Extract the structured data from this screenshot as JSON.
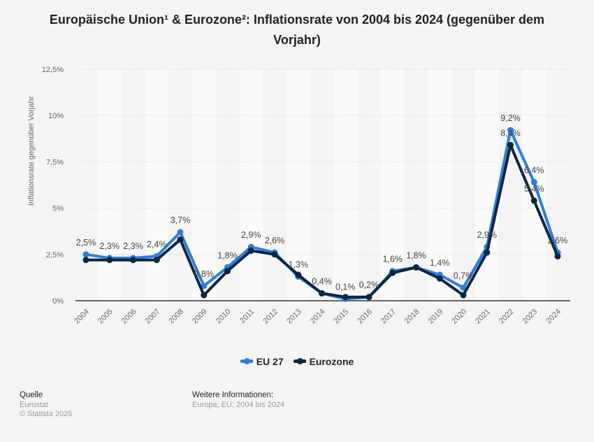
{
  "title": "Europäische Union¹ & Eurozone²: Inflationsrate von 2004 bis 2024 (gegenüber dem Vorjahr)",
  "footer": {
    "source_heading": "Quelle",
    "source": "Eurostat",
    "copyright": "© Statista 2025",
    "info_heading": "Weitere Informationen:",
    "info": "Europa; EU; 2004 bis 2024"
  },
  "colors": {
    "eu27": "#2b7ee0",
    "eurozone": "#0d2640",
    "background": "#f4f4f4"
  },
  "chart_data": {
    "type": "line",
    "title": "Europäische Union¹ & Eurozone²: Inflationsrate von 2004 bis 2024 (gegenüber dem Vorjahr)",
    "xlabel": "",
    "ylabel": "Inflationsrate gegenüber Vorjahr",
    "ylim": [
      0,
      12.5
    ],
    "yticks": [
      "0%",
      "2,5%",
      "5%",
      "7,5%",
      "10%",
      "12,5%"
    ],
    "ytick_values": [
      0,
      2.5,
      5,
      7.5,
      10,
      12.5
    ],
    "grid": true,
    "legend_position": "bottom",
    "categories": [
      "2004",
      "2005",
      "2006",
      "2007",
      "2008",
      "2009",
      "2010",
      "2011",
      "2012",
      "2013",
      "2014",
      "2015",
      "2016",
      "2017",
      "2018",
      "2019",
      "2020",
      "2021",
      "2022",
      "2023",
      "2024"
    ],
    "series": [
      {
        "name": "EU 27",
        "color": "#2b7ee0",
        "values": [
          2.5,
          2.3,
          2.3,
          2.4,
          3.7,
          0.8,
          1.8,
          2.9,
          2.6,
          1.3,
          0.4,
          0.1,
          0.2,
          1.6,
          1.8,
          1.4,
          0.7,
          2.9,
          9.2,
          6.4,
          2.6
        ],
        "labels": [
          "2,5%",
          "2,3%",
          "2,3%",
          "2,4%",
          "3,7%",
          "0,8%",
          "1,8%",
          "2,9%",
          "2,6%",
          "1,3%",
          "0,4%",
          "0,1%",
          "0,2%",
          "1,6%",
          "1,8%",
          "1,4%",
          "0,7%",
          "2,9%",
          "9,2%",
          "6,4%",
          "2,6%"
        ]
      },
      {
        "name": "Eurozone",
        "color": "#0d2640",
        "values": [
          2.2,
          2.2,
          2.2,
          2.2,
          3.3,
          0.3,
          1.6,
          2.7,
          2.5,
          1.4,
          0.4,
          0.2,
          0.2,
          1.5,
          1.8,
          1.2,
          0.3,
          2.6,
          8.4,
          5.4,
          2.4
        ],
        "labels": [
          "",
          "",
          "",
          "",
          "",
          "",
          "",
          "",
          "",
          "",
          "",
          "",
          "",
          "",
          "",
          "",
          "",
          "",
          "8,4%",
          "5,4%",
          ""
        ]
      }
    ]
  }
}
